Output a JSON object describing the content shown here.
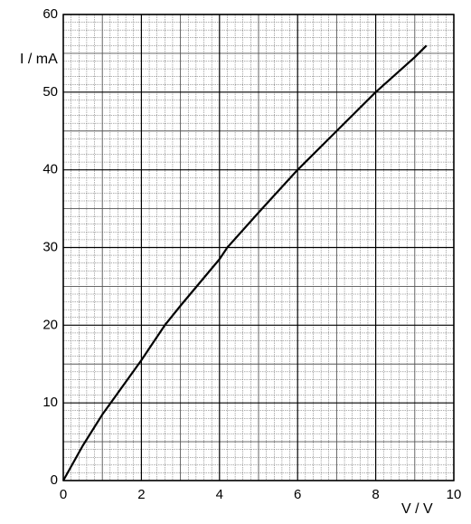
{
  "chart_data": {
    "type": "line",
    "x_label": "V / V",
    "y_label": "I / mA",
    "x": [
      0,
      0.5,
      1,
      2,
      2.6,
      3,
      4,
      4.2,
      5,
      6,
      7,
      8,
      9,
      9.3
    ],
    "series": [
      {
        "color": "#000000",
        "values": [
          0,
          4.5,
          8.5,
          15.5,
          20,
          22.5,
          28.5,
          30,
          34.5,
          40,
          45,
          50,
          54.5,
          56
        ]
      }
    ],
    "xlim": [
      0,
      10
    ],
    "ylim": [
      0,
      60
    ],
    "xticks": [
      0,
      2,
      4,
      6,
      8,
      10
    ],
    "yticks": [
      0,
      10,
      20,
      30,
      40,
      50,
      60
    ],
    "grid": true
  }
}
